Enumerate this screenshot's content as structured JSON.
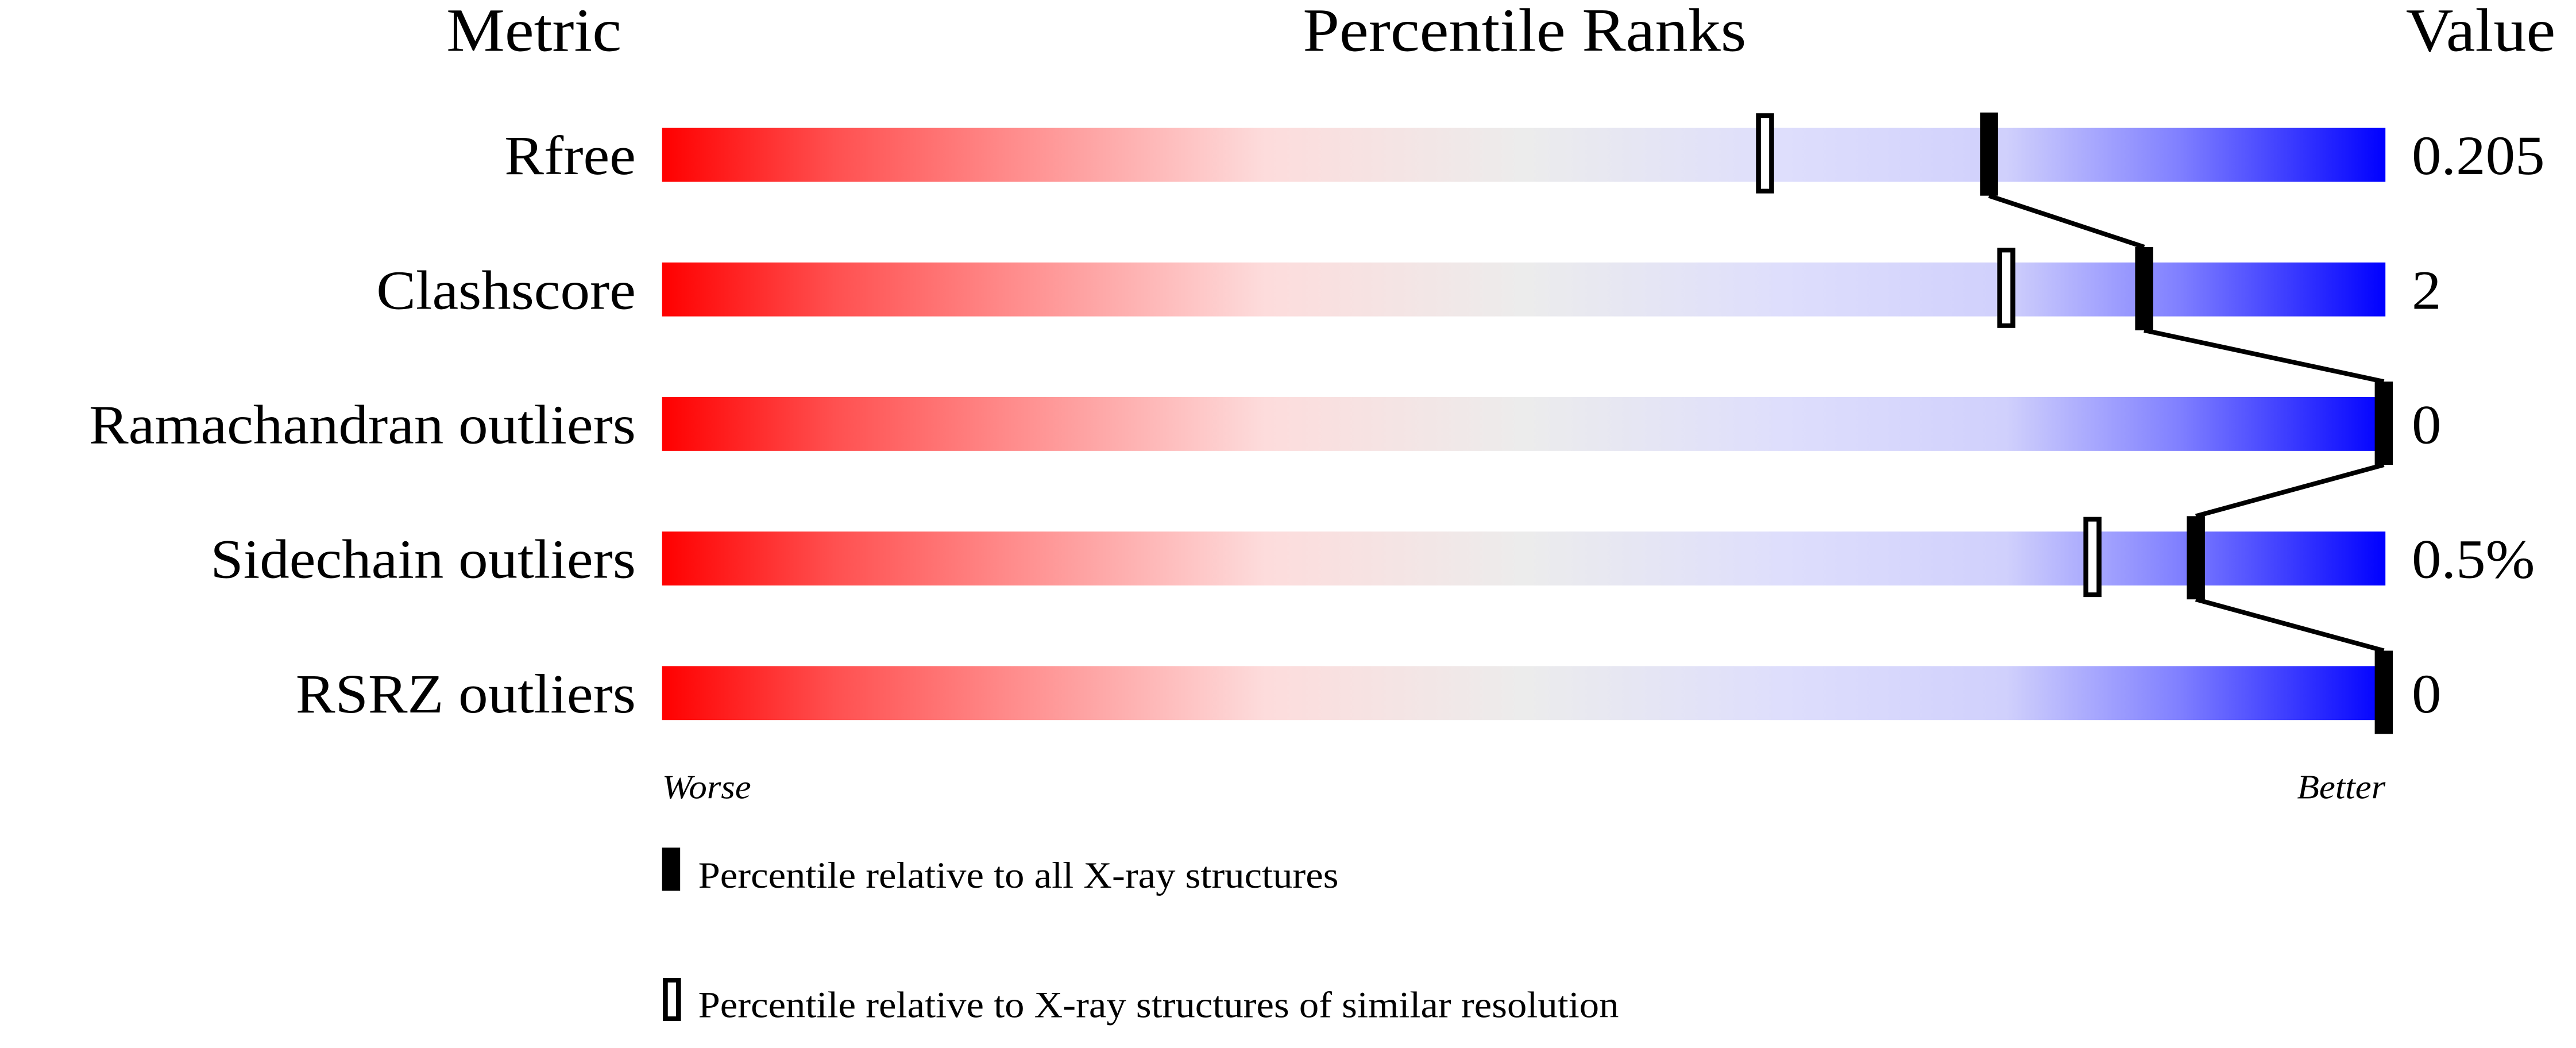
{
  "chart_data": {
    "type": "percentile-ranks",
    "headers": {
      "metric": "Metric",
      "ranks": "Percentile Ranks",
      "value": "Value"
    },
    "xlim": [
      0,
      100
    ],
    "axis_labels": {
      "left": "Worse",
      "right": "Better"
    },
    "metrics": [
      {
        "name": "Rfree",
        "value": "0.205",
        "percentile_all": 77,
        "percentile_similar": 64
      },
      {
        "name": "Clashscore",
        "value": "2",
        "percentile_all": 86,
        "percentile_similar": 78
      },
      {
        "name": "Ramachandran outliers",
        "value": "0",
        "percentile_all": 100,
        "percentile_similar": null
      },
      {
        "name": "Sidechain outliers",
        "value": "0.5%",
        "percentile_all": 89,
        "percentile_similar": 83
      },
      {
        "name": "RSRZ outliers",
        "value": "0",
        "percentile_all": 100,
        "percentile_similar": null
      }
    ],
    "legend": [
      {
        "marker": "filled",
        "label": "Percentile relative to all X-ray structures"
      },
      {
        "marker": "open",
        "label": "Percentile relative to X-ray structures of similar resolution"
      }
    ],
    "colors": {
      "worse": "#ff0000",
      "middle": "#eeeeee",
      "better": "#0000ff",
      "marker": "#000000"
    }
  }
}
